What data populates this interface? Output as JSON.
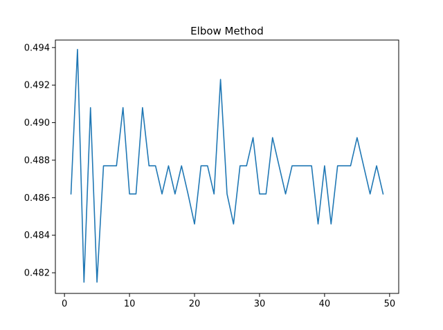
{
  "chart_data": {
    "type": "line",
    "title": "Elbow Method",
    "xlabel": "",
    "ylabel": "",
    "xlim": [
      -1.4,
      51.4
    ],
    "ylim": [
      0.4809,
      0.4944
    ],
    "x_ticks": [
      0,
      10,
      20,
      30,
      40,
      50
    ],
    "x_tick_labels": [
      "0",
      "10",
      "20",
      "30",
      "40",
      "50"
    ],
    "y_ticks": [
      0.482,
      0.484,
      0.486,
      0.488,
      0.49,
      0.492,
      0.494
    ],
    "y_tick_labels": [
      "0.482",
      "0.484",
      "0.486",
      "0.488",
      "0.490",
      "0.492",
      "0.494"
    ],
    "grid": false,
    "line_color": "#1f77b4",
    "series": [
      {
        "x": [
          1,
          2,
          3,
          4,
          5,
          6,
          7,
          8,
          9,
          10,
          11,
          12,
          13,
          14,
          15,
          16,
          17,
          18,
          19,
          20,
          21,
          22,
          23,
          24,
          25,
          26,
          27,
          28,
          29,
          30,
          31,
          32,
          33,
          34,
          35,
          36,
          37,
          38,
          39,
          40,
          41,
          42,
          43,
          44,
          45,
          46,
          47,
          48,
          49
        ],
        "values": [
          0.4862,
          0.4939,
          0.4815,
          0.4908,
          0.4815,
          0.4877,
          0.4877,
          0.4877,
          0.4908,
          0.4862,
          0.4862,
          0.4908,
          0.4877,
          0.4877,
          0.4862,
          0.4877,
          0.4862,
          0.4877,
          0.4862,
          0.4846,
          0.4877,
          0.4877,
          0.4862,
          0.4923,
          0.4862,
          0.4846,
          0.4877,
          0.4877,
          0.4892,
          0.4862,
          0.4862,
          0.4892,
          0.4877,
          0.4862,
          0.4877,
          0.4877,
          0.4877,
          0.4877,
          0.4846,
          0.4877,
          0.4846,
          0.4877,
          0.4877,
          0.4877,
          0.4892,
          0.4877,
          0.4862,
          0.4877,
          0.4862
        ]
      }
    ]
  }
}
